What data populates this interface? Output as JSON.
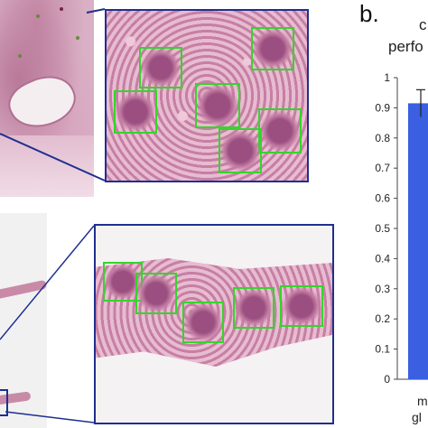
{
  "panel_b": {
    "letter": "b.",
    "title_fragment_1": "c",
    "title_fragment_2": "perfo",
    "category_fragment_1": "m",
    "category_fragment_2": "gl"
  },
  "chart_data": {
    "type": "bar",
    "categories": [
      "m gl"
    ],
    "values": [
      0.915
    ],
    "error": [
      0.045
    ],
    "ylim": [
      0,
      1
    ],
    "yticks": [
      "0",
      "0.1",
      "0.2",
      "0.3",
      "0.4",
      "0.5",
      "0.6",
      "0.7",
      "0.8",
      "0.9",
      "1"
    ],
    "bar_color": "#3a5fe0"
  },
  "colors": {
    "detection_box": "#33d62a",
    "zoom_frame": "#1f2f8f"
  }
}
